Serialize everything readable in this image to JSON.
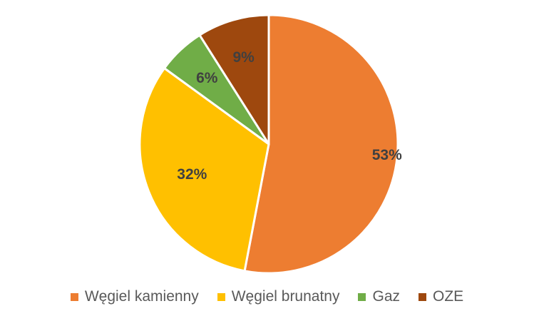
{
  "chart_data": {
    "type": "pie",
    "title": "",
    "categories": [
      "Węgiel kamienny",
      "Węgiel brunatny",
      "Gaz",
      "OZE"
    ],
    "values": [
      53,
      32,
      6,
      9
    ],
    "value_labels": [
      "53%",
      "32%",
      "6%",
      "9%"
    ],
    "colors": [
      "#ED7D31",
      "#FFC000",
      "#70AD47",
      "#9E480E"
    ],
    "legend_position": "bottom",
    "start_angle_deg": 0,
    "direction": "clockwise"
  }
}
